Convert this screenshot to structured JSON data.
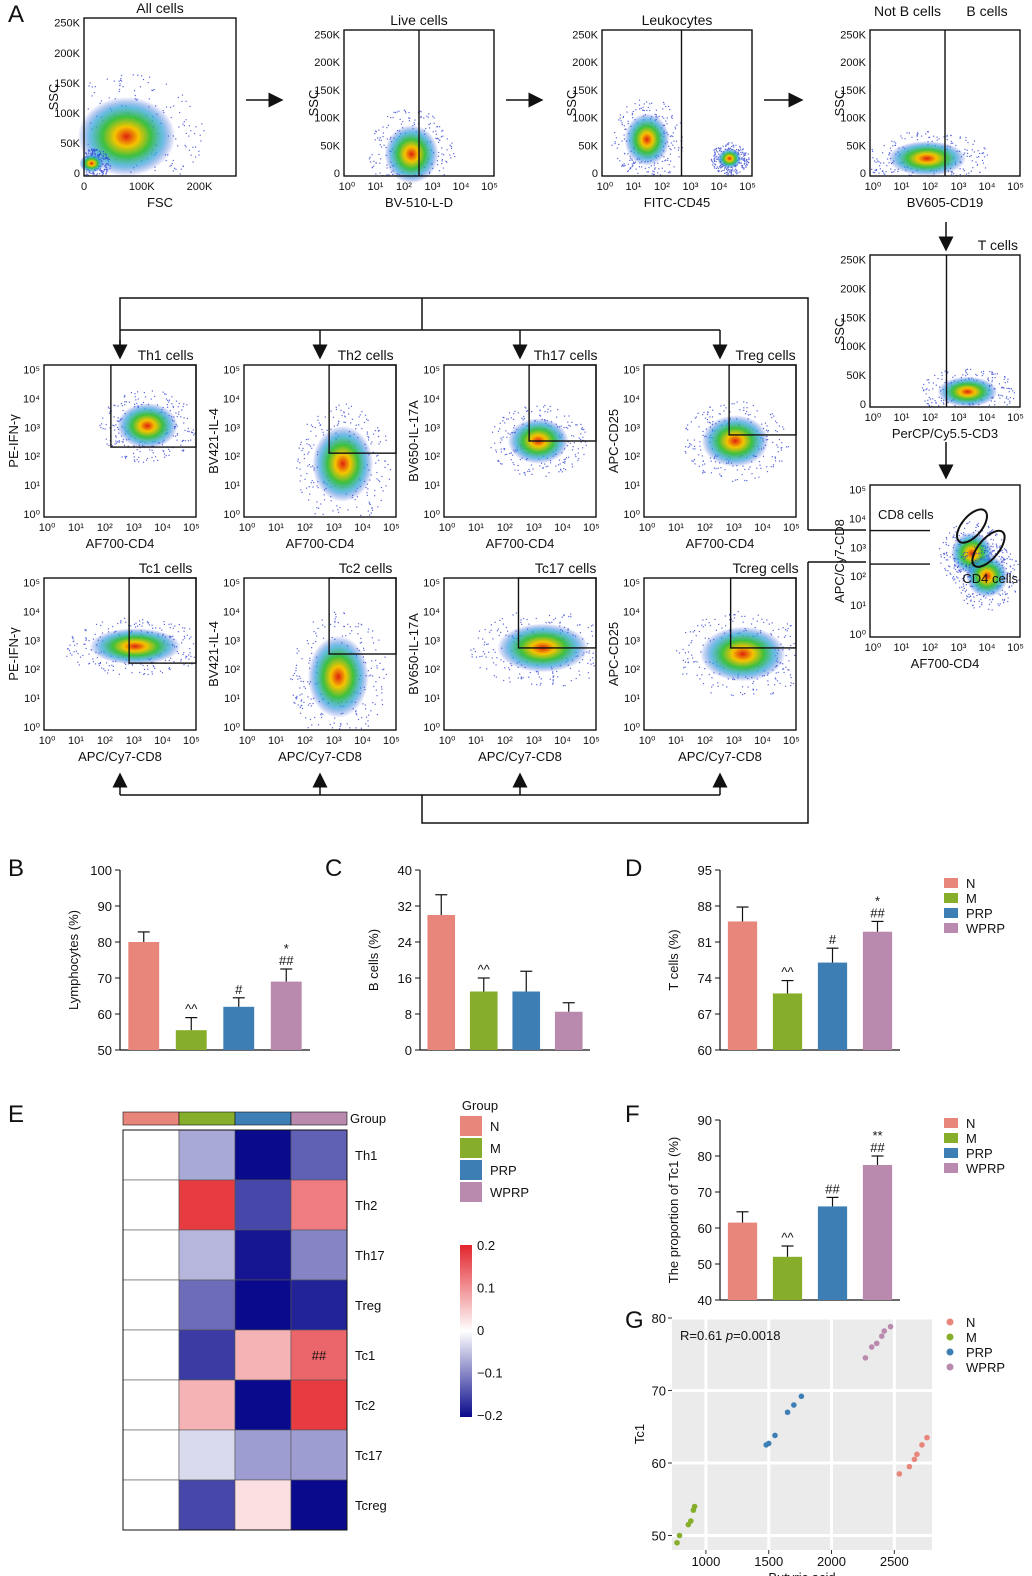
{
  "panel_labels": {
    "A": "A",
    "B": "B",
    "C": "C",
    "D": "D",
    "E": "E",
    "F": "F",
    "G": "G"
  },
  "flow_plots": [
    {
      "id": "all",
      "title": "All cells",
      "xlabel": "FSC",
      "ylabel": "SSC",
      "xticks": "lin",
      "yticks": "lin250"
    },
    {
      "id": "live",
      "title": "Live cells",
      "xlabel": "BV-510-L-D",
      "ylabel": "SSC",
      "xticks": "log",
      "yticks": "lin250"
    },
    {
      "id": "leuk",
      "title": "Leukocytes",
      "xlabel": "FITC-CD45",
      "ylabel": "SSC",
      "xticks": "log",
      "yticks": "lin250"
    },
    {
      "id": "bcell",
      "title": "Not B cells",
      "title2": "B cells",
      "xlabel": "BV605-CD19",
      "ylabel": "SSC",
      "xticks": "log",
      "yticks": "lin250"
    },
    {
      "id": "tcell",
      "title": "T cells",
      "xlabel": "PerCP/Cy5.5-CD3",
      "ylabel": "SSC",
      "xticks": "log",
      "yticks": "lin250"
    },
    {
      "id": "cd48",
      "title": "",
      "xlabel": "AF700-CD4",
      "ylabel": "APC/Cy7-CD8",
      "xticks": "log",
      "yticks": "log",
      "gate1": "CD8 cells",
      "gate2": "CD4 cells"
    },
    {
      "id": "th1",
      "title": "Th1 cells",
      "xlabel": "AF700-CD4",
      "ylabel": "PE-IFN-γ",
      "xticks": "log",
      "yticks": "log"
    },
    {
      "id": "th2",
      "title": "Th2 cells",
      "xlabel": "AF700-CD4",
      "ylabel": "BV421-IL-4",
      "xticks": "log",
      "yticks": "log"
    },
    {
      "id": "th17",
      "title": "Th17 cells",
      "xlabel": "AF700-CD4",
      "ylabel": "BV650-IL-17A",
      "xticks": "log",
      "yticks": "log"
    },
    {
      "id": "treg",
      "title": "Treg cells",
      "xlabel": "AF700-CD4",
      "ylabel": "APC-CD25",
      "xticks": "log",
      "yticks": "log"
    },
    {
      "id": "tc1",
      "title": "Tc1 cells",
      "xlabel": "APC/Cy7-CD8",
      "ylabel": "PE-IFN-γ",
      "xticks": "log",
      "yticks": "log"
    },
    {
      "id": "tc2",
      "title": "Tc2 cells",
      "xlabel": "APC/Cy7-CD8",
      "ylabel": "BV421-IL-4",
      "xticks": "log",
      "yticks": "log"
    },
    {
      "id": "tc17",
      "title": "Tc17 cells",
      "xlabel": "APC/Cy7-CD8",
      "ylabel": "BV650-IL-17A",
      "xticks": "log",
      "yticks": "log"
    },
    {
      "id": "tcreg",
      "title": "Tcreg cells",
      "xlabel": "APC/Cy7-CD8",
      "ylabel": "APC-CD25",
      "xticks": "log",
      "yticks": "log"
    }
  ],
  "ticks": {
    "lin250": [
      "0",
      "50K",
      "100K",
      "150K",
      "200K",
      "250K"
    ],
    "lin": [
      "0",
      "100K",
      "200K"
    ],
    "log": [
      "10⁰",
      "10¹",
      "10²",
      "10³",
      "10⁴",
      "10⁵"
    ]
  },
  "colors": {
    "N": "#e8867b",
    "M": "#86ae2a",
    "PRP": "#3d7fb5",
    "WPRP": "#b98aae"
  },
  "legend": [
    "N",
    "M",
    "PRP",
    "WPRP"
  ],
  "chart_data": [
    {
      "id": "B",
      "type": "bar",
      "ylabel": "Lymphocytes (%)",
      "ylim": [
        50,
        100
      ],
      "yticks": [
        50,
        60,
        70,
        80,
        90,
        100
      ],
      "categories": [
        "N",
        "M",
        "PRP",
        "WPRP"
      ],
      "values": [
        80,
        55.5,
        62,
        69
      ],
      "errors": [
        2.8,
        3.5,
        2.5,
        3.5
      ],
      "annotations": [
        [
          "",
          ""
        ],
        [
          "^^",
          ""
        ],
        [
          "#",
          ""
        ],
        [
          "##",
          "*"
        ]
      ]
    },
    {
      "id": "C",
      "type": "bar",
      "ylabel": "B cells (%)",
      "ylim": [
        0,
        40
      ],
      "yticks": [
        0,
        8,
        16,
        24,
        32,
        40
      ],
      "categories": [
        "N",
        "M",
        "PRP",
        "WPRP"
      ],
      "values": [
        30,
        13,
        13,
        8.5
      ],
      "errors": [
        4.5,
        3,
        4.5,
        2
      ],
      "annotations": [
        [
          "",
          ""
        ],
        [
          "^^",
          ""
        ],
        [
          "",
          ""
        ],
        [
          "",
          ""
        ]
      ]
    },
    {
      "id": "D",
      "type": "bar",
      "ylabel": "T cells (%)",
      "ylim": [
        60,
        95
      ],
      "yticks": [
        60,
        67,
        74,
        81,
        88,
        95
      ],
      "categories": [
        "N",
        "M",
        "PRP",
        "WPRP"
      ],
      "values": [
        85,
        71,
        77,
        83
      ],
      "errors": [
        2.8,
        2.5,
        2.8,
        2
      ],
      "annotations": [
        [
          "",
          ""
        ],
        [
          "^^",
          ""
        ],
        [
          "#",
          ""
        ],
        [
          "##",
          "*"
        ]
      ]
    },
    {
      "id": "F",
      "type": "bar",
      "ylabel": "The proportion of Tc1 (%)",
      "ylim": [
        40,
        90
      ],
      "yticks": [
        40,
        50,
        60,
        70,
        80,
        90
      ],
      "categories": [
        "N",
        "M",
        "PRP",
        "WPRP"
      ],
      "values": [
        61.5,
        52,
        66,
        77.5
      ],
      "errors": [
        3,
        3,
        2.5,
        2.5
      ],
      "annotations": [
        [
          "",
          ""
        ],
        [
          "^^",
          ""
        ],
        [
          "##",
          ""
        ],
        [
          "##",
          "**"
        ]
      ]
    },
    {
      "id": "E",
      "type": "heatmap",
      "group_label": "Group",
      "rows": [
        "Th1",
        "Th2",
        "Th17",
        "Treg",
        "Tc1",
        "Tc2",
        "Tc17",
        "Tcreg"
      ],
      "columns": [
        "N",
        "M",
        "PRP",
        "WPRP"
      ],
      "values": [
        [
          0,
          -0.07,
          -0.2,
          -0.13
        ],
        [
          0,
          0.18,
          -0.15,
          0.12
        ],
        [
          0,
          -0.06,
          -0.19,
          -0.1
        ],
        [
          0,
          -0.12,
          -0.21,
          -0.18
        ],
        [
          0,
          -0.16,
          0.07,
          0.14
        ],
        [
          0,
          0.07,
          -0.21,
          0.18
        ],
        [
          0,
          -0.03,
          -0.08,
          -0.08
        ],
        [
          0,
          -0.15,
          0.03,
          -0.21
        ]
      ],
      "cell_annotations": [
        {
          "row": 4,
          "col": 3,
          "text": "##"
        }
      ],
      "color_scale": {
        "min": -0.2,
        "max": 0.2,
        "ticks": [
          "0.2",
          "0.1",
          "0",
          "−0.1",
          "−0.2"
        ]
      }
    },
    {
      "id": "G",
      "type": "scatter",
      "xlabel": "Butyric acid",
      "ylabel": "Tc1",
      "annotation": "R=0.61 p=0.0018",
      "r_text": "R=0.61 ",
      "p_text": "p",
      "p_value": "=0.0018",
      "xlim": [
        730,
        2800
      ],
      "ylim": [
        48,
        80
      ],
      "xticks": [
        1000,
        1500,
        2000,
        2500
      ],
      "yticks": [
        50,
        60,
        70,
        80
      ],
      "series": [
        {
          "name": "N",
          "points": [
            [
              2540,
              58.5
            ],
            [
              2620,
              59.5
            ],
            [
              2660,
              60.5
            ],
            [
              2680,
              61.2
            ],
            [
              2720,
              62.5
            ],
            [
              2760,
              63.5
            ]
          ]
        },
        {
          "name": "M",
          "points": [
            [
              770,
              49
            ],
            [
              790,
              50
            ],
            [
              860,
              51.5
            ],
            [
              880,
              52
            ],
            [
              900,
              53.5
            ],
            [
              910,
              54
            ]
          ]
        },
        {
          "name": "PRP",
          "points": [
            [
              1480,
              62.5
            ],
            [
              1500,
              62.7
            ],
            [
              1550,
              63.8
            ],
            [
              1650,
              67
            ],
            [
              1700,
              68
            ],
            [
              1760,
              69.2
            ]
          ]
        },
        {
          "name": "WPRP",
          "points": [
            [
              2270,
              74.5
            ],
            [
              2320,
              76
            ],
            [
              2360,
              76.5
            ],
            [
              2400,
              77.5
            ],
            [
              2420,
              78.2
            ],
            [
              2470,
              78.8
            ]
          ]
        }
      ]
    }
  ]
}
